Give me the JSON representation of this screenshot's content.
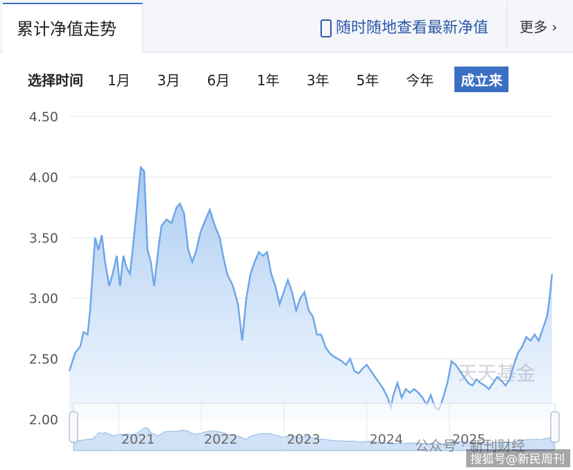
{
  "header": {
    "tab": "累计净值走势",
    "link": "随时随地查看最新净值",
    "more": "更多"
  },
  "range_selector": {
    "label": "选择时间",
    "options": [
      "1月",
      "3月",
      "6月",
      "1年",
      "3年",
      "5年",
      "今年",
      "成立来"
    ],
    "active": 7
  },
  "chart_data": {
    "type": "area",
    "color": "#6ea6e6",
    "x": [
      2020.22,
      2020.29,
      2020.35,
      2020.39,
      2020.44,
      2020.47,
      2020.53,
      2020.57,
      2020.61,
      2020.65,
      2020.7,
      2020.74,
      2020.79,
      2020.83,
      2020.87,
      2020.91,
      2020.95,
      2020.99,
      2021.04,
      2021.08,
      2021.12,
      2021.16,
      2021.2,
      2021.24,
      2021.29,
      2021.33,
      2021.39,
      2021.45,
      2021.51,
      2021.55,
      2021.6,
      2021.65,
      2021.7,
      2021.75,
      2021.8,
      2021.86,
      2021.91,
      2021.97,
      2022.03,
      2022.07,
      2022.12,
      2022.19,
      2022.25,
      2022.3,
      2022.35,
      2022.4,
      2022.45,
      2022.5,
      2022.55,
      2022.6,
      2022.65,
      2022.7,
      2022.75,
      2022.8,
      2022.85,
      2022.9,
      2022.95,
      2023.0,
      2023.05,
      2023.1,
      2023.15,
      2023.2,
      2023.25,
      2023.3,
      2023.35,
      2023.4,
      2023.45,
      2023.5,
      2023.55,
      2023.6,
      2023.65,
      2023.7,
      2023.75,
      2023.8,
      2023.85,
      2023.9,
      2023.95,
      2024.0,
      2024.05,
      2024.09,
      2024.12,
      2024.17,
      2024.22,
      2024.27,
      2024.32,
      2024.37,
      2024.42,
      2024.47,
      2024.52,
      2024.57,
      2024.62,
      2024.67,
      2024.72,
      2024.77,
      2024.82,
      2024.87,
      2024.92,
      2024.97,
      2025.02,
      2025.07,
      2025.12,
      2025.17,
      2025.22,
      2025.27,
      2025.32,
      2025.37,
      2025.42,
      2025.47,
      2025.52,
      2025.57,
      2025.62,
      2025.67,
      2025.72,
      2025.77,
      2025.82,
      2025.87,
      2025.92,
      2025.97,
      2026.0,
      2026.03
    ],
    "values": [
      2.4,
      2.55,
      2.6,
      2.72,
      2.7,
      2.9,
      3.5,
      3.4,
      3.52,
      3.3,
      3.1,
      3.2,
      3.35,
      3.1,
      3.35,
      3.25,
      3.2,
      3.45,
      3.8,
      4.08,
      4.05,
      3.4,
      3.3,
      3.1,
      3.4,
      3.6,
      3.65,
      3.62,
      3.75,
      3.78,
      3.7,
      3.4,
      3.3,
      3.4,
      3.55,
      3.65,
      3.73,
      3.6,
      3.5,
      3.35,
      3.2,
      3.1,
      2.95,
      2.65,
      3.0,
      3.2,
      3.3,
      3.38,
      3.35,
      3.38,
      3.2,
      3.1,
      2.95,
      3.05,
      3.15,
      3.05,
      2.9,
      3.0,
      3.05,
      2.9,
      2.85,
      2.7,
      2.7,
      2.6,
      2.55,
      2.52,
      2.5,
      2.48,
      2.45,
      2.5,
      2.4,
      2.38,
      2.42,
      2.45,
      2.4,
      2.35,
      2.3,
      2.25,
      2.18,
      2.1,
      2.2,
      2.3,
      2.18,
      2.25,
      2.22,
      2.25,
      2.22,
      2.18,
      2.12,
      2.2,
      2.1,
      2.08,
      2.18,
      2.3,
      2.48,
      2.45,
      2.4,
      2.35,
      2.3,
      2.28,
      2.33,
      2.3,
      2.28,
      2.25,
      2.3,
      2.35,
      2.32,
      2.28,
      2.33,
      2.45,
      2.55,
      2.6,
      2.68,
      2.65,
      2.7,
      2.65,
      2.75,
      2.85,
      3.0,
      3.2
    ],
    "xlim": [
      2020.22,
      2026.04
    ],
    "xticks": [
      2021,
      2022,
      2023,
      2024,
      2025
    ],
    "ylim": [
      2.0,
      4.5
    ],
    "yticks": [
      {
        "value": 2.0,
        "label": "2.00"
      },
      {
        "value": 2.5,
        "label": "2.50"
      },
      {
        "value": 3.0,
        "label": "3.00"
      },
      {
        "value": 3.5,
        "label": "3.50"
      },
      {
        "value": 4.0,
        "label": "4.00"
      },
      {
        "value": 4.5,
        "label": "4.50"
      }
    ],
    "grid": true
  },
  "watermarks": [
    "天天基金",
    "公众号 · 新刊财经",
    "搜狐号@新民周刊"
  ]
}
